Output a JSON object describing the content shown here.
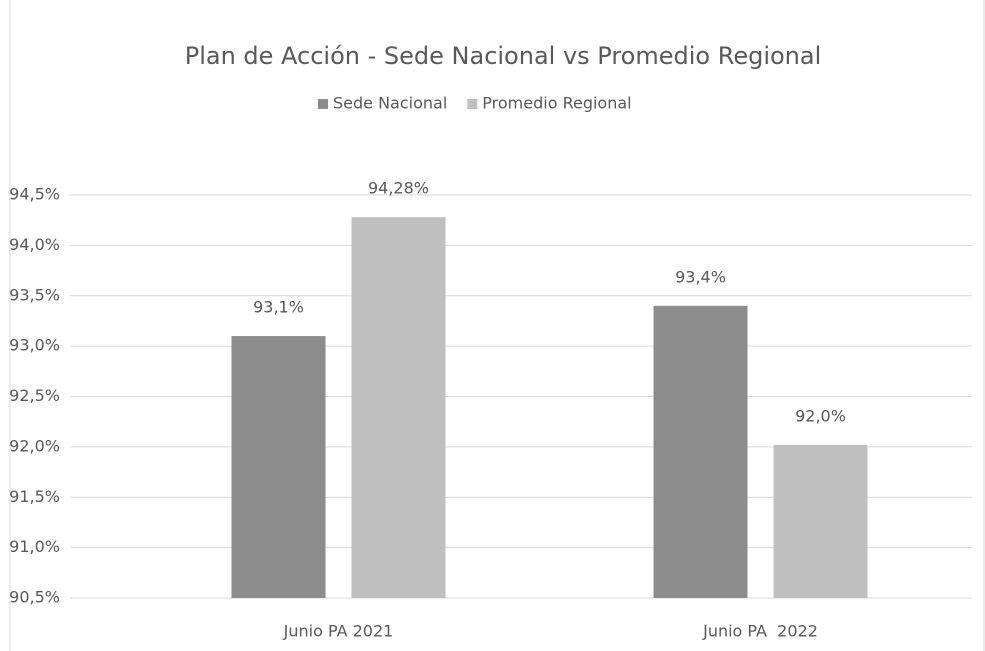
{
  "chart_data": {
    "type": "bar",
    "title": "Plan de Acción - Sede Nacional vs Promedio Regional",
    "categories": [
      "Junio PA 2021",
      "Junio PA  2022"
    ],
    "series": [
      {
        "name": "Sede Nacional",
        "color": "#8c8c8c",
        "values": [
          93.1,
          93.4
        ],
        "value_labels": [
          "93,1%",
          "93,4%"
        ]
      },
      {
        "name": "Promedio Regional",
        "color": "#bfbfbf",
        "values": [
          94.28,
          92.02
        ],
        "value_labels": [
          "94,28%",
          "92,0%"
        ]
      }
    ],
    "ylim": [
      90.5,
      94.5
    ],
    "yticks": [
      {
        "value": 90.5,
        "label": "90,5%"
      },
      {
        "value": 91.0,
        "label": "91,0%"
      },
      {
        "value": 91.5,
        "label": "91,5%"
      },
      {
        "value": 92.0,
        "label": "92,0%"
      },
      {
        "value": 92.5,
        "label": "92,5%"
      },
      {
        "value": 93.0,
        "label": "93,0%"
      },
      {
        "value": 93.5,
        "label": "93,5%"
      },
      {
        "value": 94.0,
        "label": "94,0%"
      },
      {
        "value": 94.5,
        "label": "94,5%"
      }
    ],
    "grid": true,
    "legend": "top"
  }
}
